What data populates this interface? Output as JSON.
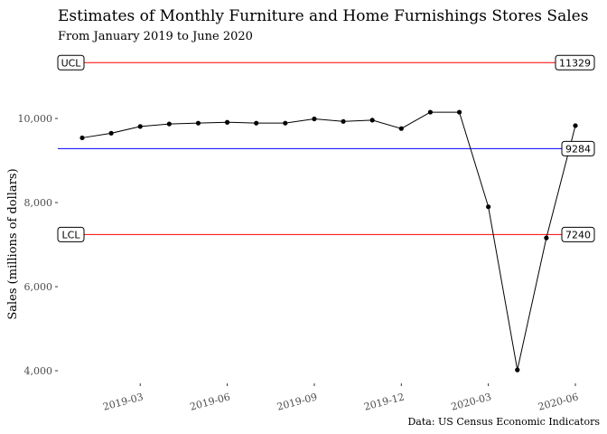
{
  "chart_data": {
    "type": "line",
    "title": "Estimates of Monthly Furniture and Home Furnishings Stores Sales",
    "subtitle": "From January 2019 to June 2020",
    "ylabel": "Sales (millions of dollars)",
    "xlabel": "",
    "caption": "Data: US Census Economic Indicators",
    "x": [
      "2019-01",
      "2019-02",
      "2019-03",
      "2019-04",
      "2019-05",
      "2019-06",
      "2019-07",
      "2019-08",
      "2019-09",
      "2019-10",
      "2019-11",
      "2019-12",
      "2020-01",
      "2020-02",
      "2020-03",
      "2020-04",
      "2020-05",
      "2020-06"
    ],
    "series": [
      {
        "values": [
          9540,
          9650,
          9810,
          9870,
          9890,
          9910,
          9890,
          9890,
          9990,
          9930,
          9960,
          9760,
          10150,
          10150,
          7900,
          4020,
          7160,
          9830
        ]
      }
    ],
    "x_ticks": [
      "2019-03",
      "2019-06",
      "2019-09",
      "2019-12",
      "2020-03",
      "2020-06"
    ],
    "y_ticks": [
      4000,
      6000,
      8000,
      10000
    ],
    "y_tick_labels": [
      "4,000",
      "6,000",
      "8,000",
      "10,000"
    ],
    "ylim": [
      3700,
      11700
    ],
    "control_lines": {
      "ucl": {
        "label": "UCL",
        "value": 11329,
        "value_text": "11329",
        "color": "#ff0000"
      },
      "mean": {
        "value": 9284,
        "value_text": "9284",
        "color": "#0000ff"
      },
      "lcl": {
        "label": "LCL",
        "value": 7240,
        "value_text": "7240",
        "color": "#ff0000"
      }
    },
    "line_color": "#000000",
    "point_color": "#000000",
    "grid": false,
    "legend": "none"
  }
}
